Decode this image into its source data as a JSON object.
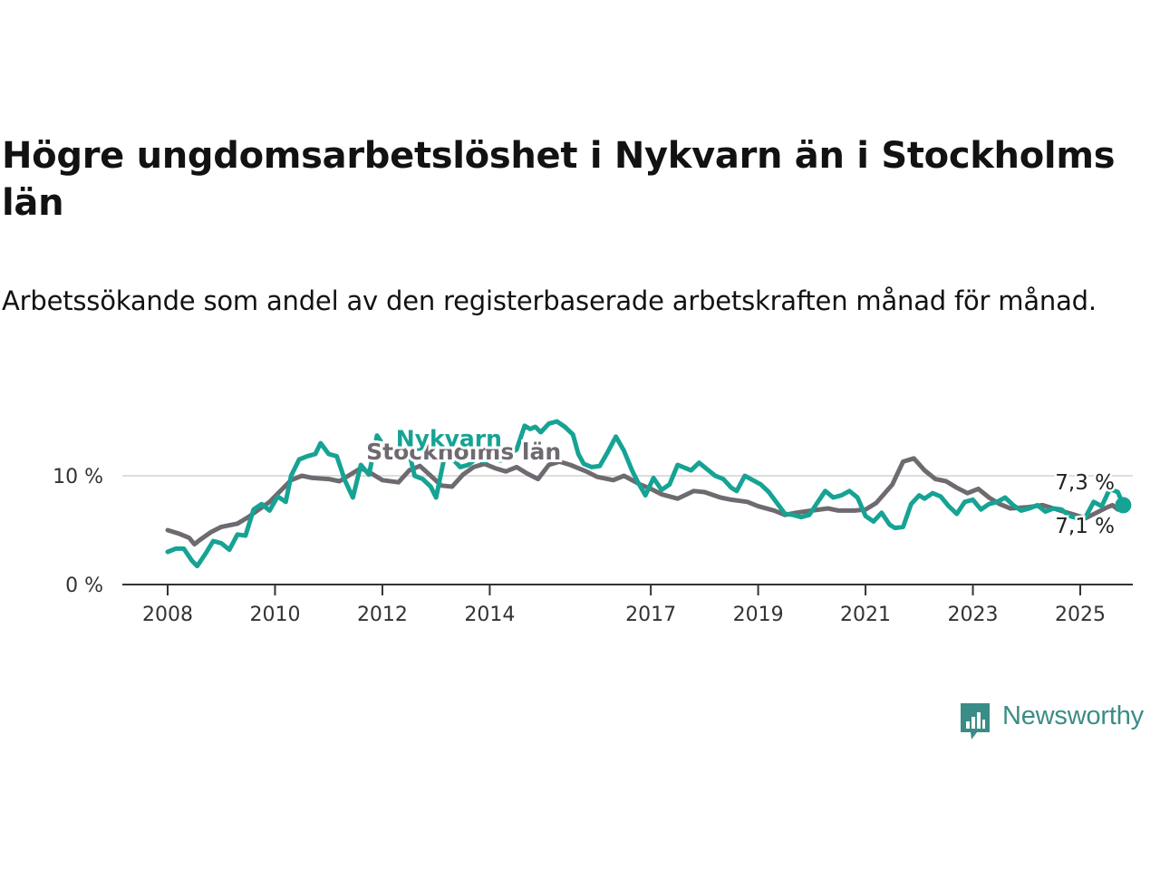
{
  "title": "Högre ungdomsarbetslöshet i Nykvarn än i Stockholms län",
  "subtitle": "Arbetssökande som andel av den registerbaserade arbetskraften månad för månad.",
  "logo": {
    "text": "Newsworthy",
    "icon": "bar-chart-speech-bubble-icon"
  },
  "colors": {
    "nykvarn": "#16a394",
    "stockholm": "#6e6a70",
    "grid": "#dddddd",
    "axis": "#333333",
    "end_value_label": "#16a394"
  },
  "chart_data": {
    "type": "line",
    "title": "Högre ungdomsarbetslöshet i Nykvarn än i Stockholms län",
    "subtitle": "Arbetssökande som andel av den registerbaserade arbetskraften månad för månad.",
    "xlim": [
      2008,
      2025.9
    ],
    "ylim": [
      0,
      16
    ],
    "y_ticks": [
      {
        "value": 0,
        "label": "0 %"
      },
      {
        "value": 10,
        "label": "10 %"
      }
    ],
    "x_ticks": [
      {
        "value": 2008,
        "label": "2008"
      },
      {
        "value": 2010,
        "label": "2010"
      },
      {
        "value": 2012,
        "label": "2012"
      },
      {
        "value": 2014,
        "label": "2014"
      },
      {
        "value": 2017,
        "label": "2017"
      },
      {
        "value": 2019,
        "label": "2019"
      },
      {
        "value": 2021,
        "label": "2021"
      },
      {
        "value": 2023,
        "label": "2023"
      },
      {
        "value": 2025,
        "label": "2025"
      }
    ],
    "grid": "horizontal",
    "legend": "direct labels on lines",
    "series": [
      {
        "name": "Stockholms län",
        "label_at": [
          2011.7,
          11.5
        ],
        "end_label": "7,1 %",
        "points": [
          [
            2008,
            5.0
          ],
          [
            2008.2,
            4.7
          ],
          [
            2008.4,
            4.3
          ],
          [
            2008.5,
            3.7
          ],
          [
            2008.6,
            4.1
          ],
          [
            2008.8,
            4.8
          ],
          [
            2009,
            5.3
          ],
          [
            2009.3,
            5.6
          ],
          [
            2009.5,
            6.2
          ],
          [
            2009.7,
            6.9
          ],
          [
            2009.9,
            7.6
          ],
          [
            2010.1,
            8.6
          ],
          [
            2010.3,
            9.6
          ],
          [
            2010.5,
            10.0
          ],
          [
            2010.7,
            9.8
          ],
          [
            2011,
            9.7
          ],
          [
            2011.2,
            9.5
          ],
          [
            2011.4,
            10.1
          ],
          [
            2011.6,
            10.7
          ],
          [
            2011.8,
            10.2
          ],
          [
            2012,
            9.6
          ],
          [
            2012.3,
            9.4
          ],
          [
            2012.5,
            10.5
          ],
          [
            2012.7,
            10.9
          ],
          [
            2012.9,
            10.0
          ],
          [
            2013.1,
            9.1
          ],
          [
            2013.3,
            9.0
          ],
          [
            2013.5,
            10.1
          ],
          [
            2013.7,
            10.8
          ],
          [
            2013.9,
            11.1
          ],
          [
            2014.1,
            10.7
          ],
          [
            2014.3,
            10.4
          ],
          [
            2014.5,
            10.8
          ],
          [
            2014.7,
            10.2
          ],
          [
            2014.9,
            9.7
          ],
          [
            2015.1,
            11.0
          ],
          [
            2015.3,
            11.3
          ],
          [
            2015.5,
            11.0
          ],
          [
            2015.8,
            10.4
          ],
          [
            2016,
            9.9
          ],
          [
            2016.3,
            9.6
          ],
          [
            2016.5,
            10.0
          ],
          [
            2016.8,
            9.2
          ],
          [
            2017,
            8.8
          ],
          [
            2017.2,
            8.3
          ],
          [
            2017.5,
            7.9
          ],
          [
            2017.8,
            8.6
          ],
          [
            2018,
            8.5
          ],
          [
            2018.3,
            8.0
          ],
          [
            2018.5,
            7.8
          ],
          [
            2018.8,
            7.6
          ],
          [
            2019,
            7.2
          ],
          [
            2019.3,
            6.8
          ],
          [
            2019.5,
            6.4
          ],
          [
            2019.7,
            6.6
          ],
          [
            2020,
            6.8
          ],
          [
            2020.3,
            7.0
          ],
          [
            2020.5,
            6.8
          ],
          [
            2020.8,
            6.8
          ],
          [
            2021,
            6.9
          ],
          [
            2021.2,
            7.5
          ],
          [
            2021.5,
            9.2
          ],
          [
            2021.7,
            11.3
          ],
          [
            2021.9,
            11.6
          ],
          [
            2022.1,
            10.5
          ],
          [
            2022.3,
            9.7
          ],
          [
            2022.5,
            9.5
          ],
          [
            2022.7,
            8.9
          ],
          [
            2022.9,
            8.4
          ],
          [
            2023.1,
            8.8
          ],
          [
            2023.3,
            8.0
          ],
          [
            2023.5,
            7.4
          ],
          [
            2023.7,
            7.0
          ],
          [
            2024,
            7.1
          ],
          [
            2024.3,
            7.3
          ],
          [
            2024.5,
            7.0
          ],
          [
            2024.7,
            6.7
          ],
          [
            2024.9,
            6.4
          ],
          [
            2025.1,
            6.1
          ],
          [
            2025.3,
            6.6
          ],
          [
            2025.5,
            7.1
          ],
          [
            2025.6,
            7.3
          ],
          [
            2025.7,
            6.9
          ],
          [
            2025.8,
            7.1
          ]
        ]
      },
      {
        "name": "Nykvarn",
        "label_at": [
          2012.25,
          12.7
        ],
        "end_label": "7,3 %",
        "points": [
          [
            2008,
            3.0
          ],
          [
            2008.15,
            3.3
          ],
          [
            2008.3,
            3.3
          ],
          [
            2008.45,
            2.2
          ],
          [
            2008.55,
            1.7
          ],
          [
            2008.7,
            2.8
          ],
          [
            2008.85,
            4.0
          ],
          [
            2009,
            3.8
          ],
          [
            2009.15,
            3.2
          ],
          [
            2009.3,
            4.6
          ],
          [
            2009.45,
            4.5
          ],
          [
            2009.6,
            6.9
          ],
          [
            2009.75,
            7.4
          ],
          [
            2009.9,
            6.8
          ],
          [
            2010.05,
            8.1
          ],
          [
            2010.2,
            7.6
          ],
          [
            2010.3,
            10.0
          ],
          [
            2010.45,
            11.5
          ],
          [
            2010.6,
            11.8
          ],
          [
            2010.75,
            12.0
          ],
          [
            2010.85,
            13.0
          ],
          [
            2011,
            12.0
          ],
          [
            2011.15,
            11.8
          ],
          [
            2011.3,
            9.6
          ],
          [
            2011.45,
            8.0
          ],
          [
            2011.6,
            11.0
          ],
          [
            2011.75,
            10.1
          ],
          [
            2011.9,
            13.7
          ],
          [
            2012.05,
            12.6
          ],
          [
            2012.2,
            12.4
          ],
          [
            2012.35,
            12.0
          ],
          [
            2012.5,
            12.1
          ],
          [
            2012.6,
            10.0
          ],
          [
            2012.75,
            9.7
          ],
          [
            2012.9,
            9.0
          ],
          [
            2013.0,
            8.0
          ],
          [
            2013.15,
            11.6
          ],
          [
            2013.3,
            11.6
          ],
          [
            2013.45,
            10.8
          ],
          [
            2013.6,
            11.0
          ],
          [
            2013.75,
            11.6
          ],
          [
            2013.9,
            11.3
          ],
          [
            2014.05,
            11.6
          ],
          [
            2014.2,
            11.4
          ],
          [
            2014.35,
            12.0
          ],
          [
            2014.5,
            12.4
          ],
          [
            2014.65,
            14.6
          ],
          [
            2014.75,
            14.3
          ],
          [
            2014.85,
            14.5
          ],
          [
            2014.95,
            14.0
          ],
          [
            2015.1,
            14.8
          ],
          [
            2015.25,
            15.0
          ],
          [
            2015.4,
            14.5
          ],
          [
            2015.55,
            13.8
          ],
          [
            2015.65,
            12.0
          ],
          [
            2015.75,
            11.1
          ],
          [
            2015.9,
            10.8
          ],
          [
            2016.05,
            10.9
          ],
          [
            2016.2,
            12.2
          ],
          [
            2016.35,
            13.6
          ],
          [
            2016.5,
            12.3
          ],
          [
            2016.65,
            10.5
          ],
          [
            2016.75,
            9.5
          ],
          [
            2016.9,
            8.2
          ],
          [
            2017.05,
            9.8
          ],
          [
            2017.2,
            8.7
          ],
          [
            2017.35,
            9.2
          ],
          [
            2017.5,
            11.0
          ],
          [
            2017.6,
            10.8
          ],
          [
            2017.75,
            10.5
          ],
          [
            2017.9,
            11.2
          ],
          [
            2018.05,
            10.6
          ],
          [
            2018.2,
            10.0
          ],
          [
            2018.35,
            9.7
          ],
          [
            2018.5,
            8.9
          ],
          [
            2018.6,
            8.6
          ],
          [
            2018.75,
            10.0
          ],
          [
            2018.9,
            9.6
          ],
          [
            2019.05,
            9.2
          ],
          [
            2019.2,
            8.5
          ],
          [
            2019.35,
            7.5
          ],
          [
            2019.5,
            6.5
          ],
          [
            2019.65,
            6.4
          ],
          [
            2019.8,
            6.2
          ],
          [
            2019.95,
            6.4
          ],
          [
            2020.1,
            7.5
          ],
          [
            2020.25,
            8.6
          ],
          [
            2020.4,
            8.0
          ],
          [
            2020.55,
            8.2
          ],
          [
            2020.7,
            8.6
          ],
          [
            2020.85,
            8.0
          ],
          [
            2021.0,
            6.3
          ],
          [
            2021.15,
            5.8
          ],
          [
            2021.3,
            6.6
          ],
          [
            2021.45,
            5.5
          ],
          [
            2021.55,
            5.2
          ],
          [
            2021.7,
            5.3
          ],
          [
            2021.85,
            7.4
          ],
          [
            2022.0,
            8.2
          ],
          [
            2022.1,
            7.9
          ],
          [
            2022.25,
            8.4
          ],
          [
            2022.4,
            8.1
          ],
          [
            2022.55,
            7.2
          ],
          [
            2022.7,
            6.5
          ],
          [
            2022.85,
            7.6
          ],
          [
            2023.0,
            7.8
          ],
          [
            2023.15,
            6.9
          ],
          [
            2023.3,
            7.4
          ],
          [
            2023.45,
            7.6
          ],
          [
            2023.6,
            8.0
          ],
          [
            2023.75,
            7.3
          ],
          [
            2023.9,
            6.8
          ],
          [
            2024.05,
            7.0
          ],
          [
            2024.2,
            7.3
          ],
          [
            2024.35,
            6.7
          ],
          [
            2024.5,
            7.0
          ],
          [
            2024.65,
            6.9
          ],
          [
            2024.8,
            6.3
          ],
          [
            2024.95,
            6.1
          ],
          [
            2025.1,
            6.2
          ],
          [
            2025.25,
            7.6
          ],
          [
            2025.4,
            7.2
          ],
          [
            2025.55,
            8.8
          ],
          [
            2025.7,
            8.5
          ],
          [
            2025.8,
            7.3
          ]
        ]
      }
    ]
  }
}
